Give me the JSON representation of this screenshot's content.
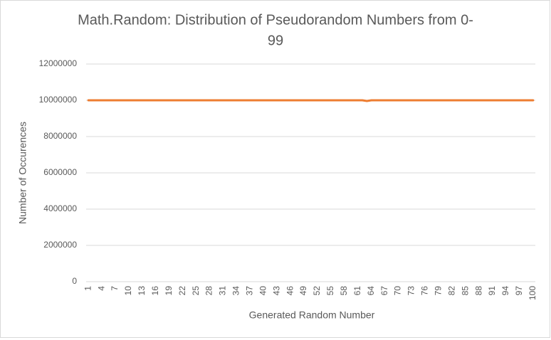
{
  "chart_data": {
    "type": "line",
    "title": [
      "Math.Random: Distribution of Pseudorandom Numbers from 0-",
      "99"
    ],
    "xlabel": "Generated Random Number",
    "ylabel": "Number of Occurences",
    "categories": [
      "1",
      null,
      null,
      "4",
      null,
      null,
      "7",
      null,
      null,
      "10",
      null,
      null,
      "13",
      null,
      null,
      "16",
      null,
      null,
      "19",
      null,
      null,
      "22",
      null,
      null,
      "25",
      null,
      null,
      "28",
      null,
      null,
      "31",
      null,
      null,
      "34",
      null,
      null,
      "37",
      null,
      null,
      "40",
      null,
      null,
      "43",
      null,
      null,
      "46",
      null,
      null,
      "49",
      null,
      null,
      "52",
      null,
      null,
      "55",
      null,
      null,
      "58",
      null,
      null,
      "61",
      null,
      null,
      "64",
      null,
      null,
      "67",
      null,
      null,
      "70",
      null,
      null,
      "73",
      null,
      null,
      "76",
      null,
      null,
      "79",
      null,
      null,
      "82",
      null,
      null,
      "85",
      null,
      null,
      "88",
      null,
      null,
      "91",
      null,
      null,
      "94",
      null,
      null,
      "97",
      null,
      null,
      "100"
    ],
    "values": [
      10000000,
      10000000,
      10000000,
      10000000,
      10000000,
      10000000,
      10000000,
      10000000,
      10000000,
      10000000,
      10000000,
      10000000,
      10000000,
      10000000,
      10000000,
      10000000,
      10000000,
      10000000,
      10000000,
      10000000,
      10000000,
      10000000,
      10000000,
      10000000,
      10000000,
      10000000,
      10000000,
      10000000,
      10000000,
      10000000,
      10000000,
      10000000,
      10000000,
      10000000,
      10000000,
      10000000,
      10000000,
      10000000,
      10000000,
      10000000,
      10000000,
      10000000,
      10000000,
      10000000,
      10000000,
      10000000,
      10000000,
      10000000,
      10000000,
      10000000,
      10000000,
      10000000,
      10000000,
      10000000,
      10000000,
      10000000,
      10000000,
      10000000,
      10000000,
      10000000,
      10000000,
      10000000,
      9960000,
      10000000,
      10000000,
      10000000,
      10000000,
      10000000,
      10000000,
      10000000,
      10000000,
      10000000,
      10000000,
      10000000,
      10000000,
      10000000,
      10000000,
      10000000,
      10000000,
      10000000,
      10000000,
      10000000,
      10000000,
      10000000,
      10000000,
      10000000,
      10000000,
      10000000,
      10000000,
      10000000,
      10000000,
      10000000,
      10000000,
      10000000,
      10000000,
      10000000,
      10000000,
      10000000,
      10000000,
      10000000
    ],
    "color": "#ed7d31",
    "ylim": [
      0,
      12000000
    ],
    "yticks": [
      0,
      2000000,
      4000000,
      6000000,
      8000000,
      10000000,
      12000000
    ],
    "grid": true
  }
}
